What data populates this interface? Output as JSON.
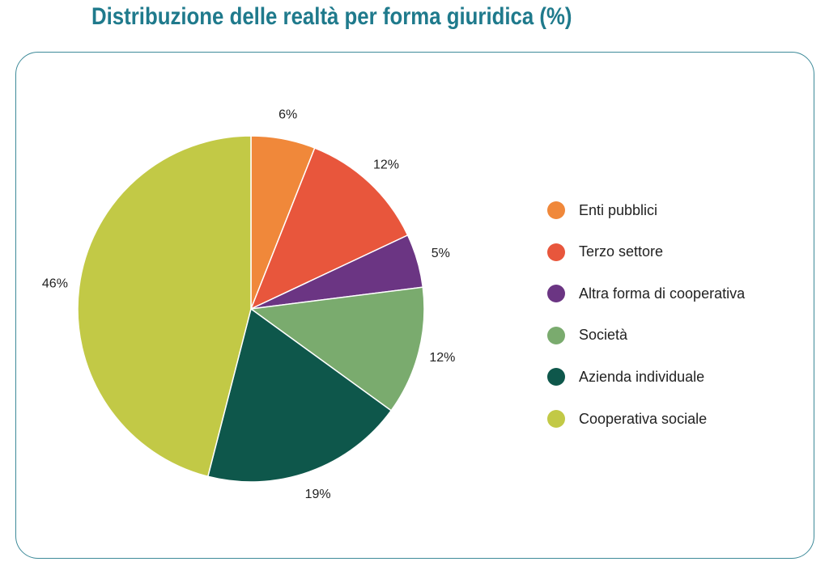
{
  "chart_data": {
    "type": "pie",
    "title": "Distribuzione delle realtà per forma giuridica (%)",
    "slices": [
      {
        "name": "Enti pubblici",
        "value": 6,
        "label": "6%",
        "color": "#f0883a"
      },
      {
        "name": "Terzo settore",
        "value": 12,
        "label": "12%",
        "color": "#e8563c"
      },
      {
        "name": "Altra forma di cooperativa",
        "value": 5,
        "label": "5%",
        "color": "#6b3583"
      },
      {
        "name": "Società",
        "value": 12,
        "label": "12%",
        "color": "#7aab6e"
      },
      {
        "name": "Azienda individuale",
        "value": 19,
        "label": "19%",
        "color": "#0e574b"
      },
      {
        "name": "Cooperativa sociale",
        "value": 46,
        "label": "46%",
        "color": "#c2c946"
      }
    ],
    "start_angle": "12 o'clock",
    "direction": "clockwise",
    "legend": "right"
  },
  "colors": {
    "title": "#1f7a8c",
    "frame_border": "#3d8a99"
  }
}
